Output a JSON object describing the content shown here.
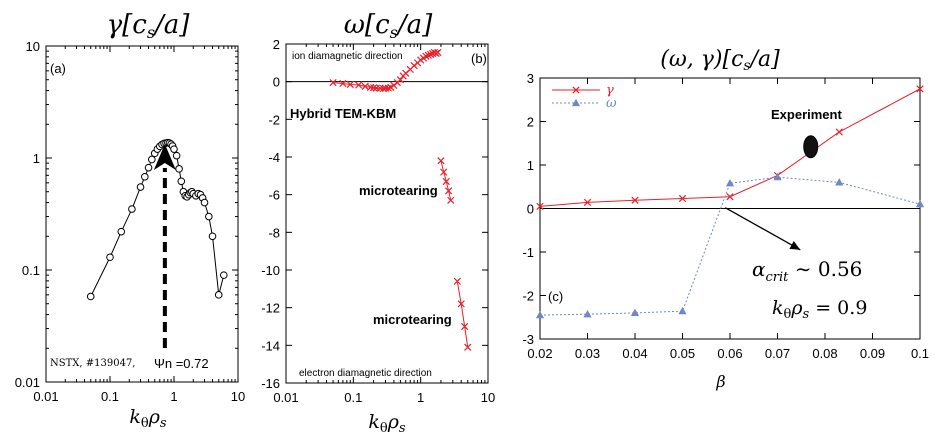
{
  "chart_data": [
    {
      "id": "a",
      "type": "line",
      "title": "γ[c_s/a]",
      "title_display": {
        "main": "γ[",
        "sub_base": "c",
        "sub": "s",
        "tail": "/a]"
      },
      "xlabel": "k_θ ρ_s",
      "ylabel": "",
      "x_scale": "log",
      "y_scale": "log",
      "xlim": [
        0.01,
        10
      ],
      "ylim": [
        0.01,
        10
      ],
      "x_ticks": [
        0.01,
        0.1,
        1,
        10
      ],
      "x_tick_labels": [
        "0.01",
        "0.1",
        "1",
        "10"
      ],
      "y_ticks": [
        0.01,
        0.1,
        1,
        10
      ],
      "y_tick_labels": [
        "0.01",
        "0.1",
        "1",
        "10"
      ],
      "grid": false,
      "panel_label": "(a)",
      "footer_text": "NSTX, #139047,",
      "arrow_label": "Ψn =0.72",
      "arrow_x": 0.72,
      "series": [
        {
          "name": "γ",
          "color": "#000000",
          "marker": "open-circle",
          "x": [
            0.05,
            0.1,
            0.15,
            0.22,
            0.3,
            0.35,
            0.4,
            0.45,
            0.5,
            0.55,
            0.6,
            0.65,
            0.7,
            0.75,
            0.8,
            0.85,
            0.9,
            0.95,
            1.0,
            1.1,
            1.2,
            1.3,
            1.4,
            1.5,
            1.6,
            1.7,
            1.8,
            1.9,
            2.0,
            2.2,
            2.4,
            2.6,
            2.8,
            3.0,
            3.5,
            4.0,
            5.0,
            6.0
          ],
          "y": [
            0.058,
            0.13,
            0.22,
            0.35,
            0.55,
            0.68,
            0.82,
            0.97,
            1.1,
            1.2,
            1.27,
            1.32,
            1.35,
            1.36,
            1.37,
            1.36,
            1.33,
            1.28,
            1.2,
            1.05,
            0.8,
            0.62,
            0.5,
            0.46,
            0.45,
            0.47,
            0.49,
            0.5,
            0.48,
            0.46,
            0.48,
            0.47,
            0.44,
            0.4,
            0.3,
            0.2,
            0.06,
            0.09
          ]
        }
      ]
    },
    {
      "id": "b",
      "type": "scatter",
      "title": "ω[c_s/a]",
      "title_display": {
        "main": "ω[",
        "sub_base": "c",
        "sub": "s",
        "tail": "/a]"
      },
      "xlabel": "k_θ ρ_s",
      "ylabel": "",
      "x_scale": "log",
      "y_scale": "linear",
      "xlim": [
        0.01,
        10
      ],
      "ylim": [
        -16,
        2
      ],
      "x_ticks": [
        0.01,
        0.1,
        1,
        10
      ],
      "x_tick_labels": [
        "0.01",
        "0.1",
        "1",
        "10"
      ],
      "y_ticks": [
        2,
        0,
        -2,
        -4,
        -6,
        -8,
        -10,
        -12,
        -14,
        -16
      ],
      "y_tick_labels": [
        "2",
        "0",
        "-2",
        "-4",
        "-6",
        "-8",
        "-10",
        "-12",
        "-14",
        "-16"
      ],
      "zero_line": true,
      "grid": false,
      "panel_label": "(b)",
      "annotations": {
        "top": "ion diamagnetic direction",
        "bottom": "electron diamagnetic direction",
        "hybrid": "Hybrid TEM-KBM",
        "microtearing1": "microtearing",
        "microtearing2": "microtearing"
      },
      "series": [
        {
          "name": "Hybrid TEM-KBM",
          "color": "#e8202a",
          "marker": "x",
          "x": [
            0.05,
            0.07,
            0.09,
            0.12,
            0.15,
            0.18,
            0.2,
            0.22,
            0.25,
            0.28,
            0.3,
            0.33,
            0.36,
            0.4,
            0.45,
            0.5,
            0.55,
            0.6,
            0.7,
            0.8,
            0.9,
            1.0,
            1.1,
            1.2,
            1.3,
            1.4,
            1.5,
            1.6,
            1.7,
            1.8
          ],
          "y": [
            -0.05,
            -0.1,
            -0.15,
            -0.18,
            -0.25,
            -0.3,
            -0.32,
            -0.34,
            -0.35,
            -0.36,
            -0.35,
            -0.34,
            -0.3,
            -0.2,
            -0.05,
            0.1,
            0.3,
            0.45,
            0.65,
            0.85,
            1.0,
            1.15,
            1.25,
            1.35,
            1.4,
            1.45,
            1.5,
            1.55,
            1.5,
            1.55
          ]
        },
        {
          "name": "microtearing (low)",
          "color": "#e8202a",
          "marker": "x",
          "x": [
            2.0,
            2.2,
            2.4,
            2.6,
            2.8
          ],
          "y": [
            -4.2,
            -4.8,
            -5.3,
            -5.8,
            -6.3
          ]
        },
        {
          "name": "microtearing (high)",
          "color": "#e8202a",
          "marker": "x",
          "x": [
            3.5,
            4.0,
            4.5,
            5.0
          ],
          "y": [
            -10.6,
            -11.8,
            -13.0,
            -14.1
          ]
        }
      ]
    },
    {
      "id": "c",
      "type": "line",
      "title": "(ω, γ)[c_s/a]",
      "title_display": {
        "main": "(ω, γ)[",
        "sub_base": "c",
        "sub": "s",
        "tail": "/a]"
      },
      "xlabel": "β",
      "ylabel": "",
      "x_scale": "linear",
      "y_scale": "linear",
      "xlim": [
        0.02,
        0.1
      ],
      "ylim": [
        -3,
        3
      ],
      "x_ticks": [
        0.02,
        0.03,
        0.04,
        0.05,
        0.06,
        0.07,
        0.08,
        0.09,
        0.1
      ],
      "x_tick_labels": [
        "0.02",
        "0.03",
        "0.04",
        "0.05",
        "0.06",
        "0.07",
        "0.08",
        "0.09",
        "0.1"
      ],
      "y_ticks": [
        3,
        2,
        1,
        0,
        -1,
        -2,
        -3
      ],
      "y_tick_labels": [
        "3",
        "2",
        "1",
        "0",
        "-1",
        "-2",
        "-3"
      ],
      "zero_line": true,
      "grid": false,
      "legend_position": "top-left",
      "panel_label": "(c)",
      "experiment_label": "Experiment",
      "experiment_point": {
        "x": 0.077,
        "y": 1.42
      },
      "alpha_label": {
        "base": "α",
        "sub": "crit",
        "tail": " ∼ 0.56"
      },
      "alpha_arrow": {
        "from": [
          0.0748,
          -0.95
        ],
        "to": [
          0.059,
          0.02
        ]
      },
      "k_label": {
        "base": "k",
        "sub1": "θ",
        "mid": "ρ",
        "sub2": "s",
        "tail": " = 0.9"
      },
      "series": [
        {
          "name": "γ",
          "color": "#e8202a",
          "marker": "x",
          "style": "solid",
          "x": [
            0.02,
            0.03,
            0.04,
            0.05,
            0.06,
            0.07,
            0.083,
            0.1
          ],
          "y": [
            0.05,
            0.14,
            0.19,
            0.23,
            0.27,
            0.76,
            1.76,
            2.75
          ]
        },
        {
          "name": "ω",
          "color": "#6e88c4",
          "marker": "triangle",
          "style": "dashed",
          "x": [
            0.02,
            0.03,
            0.04,
            0.05,
            0.06,
            0.07,
            0.083,
            0.1
          ],
          "y": [
            -2.45,
            -2.43,
            -2.4,
            -2.36,
            0.58,
            0.72,
            0.6,
            0.1
          ]
        }
      ]
    }
  ]
}
